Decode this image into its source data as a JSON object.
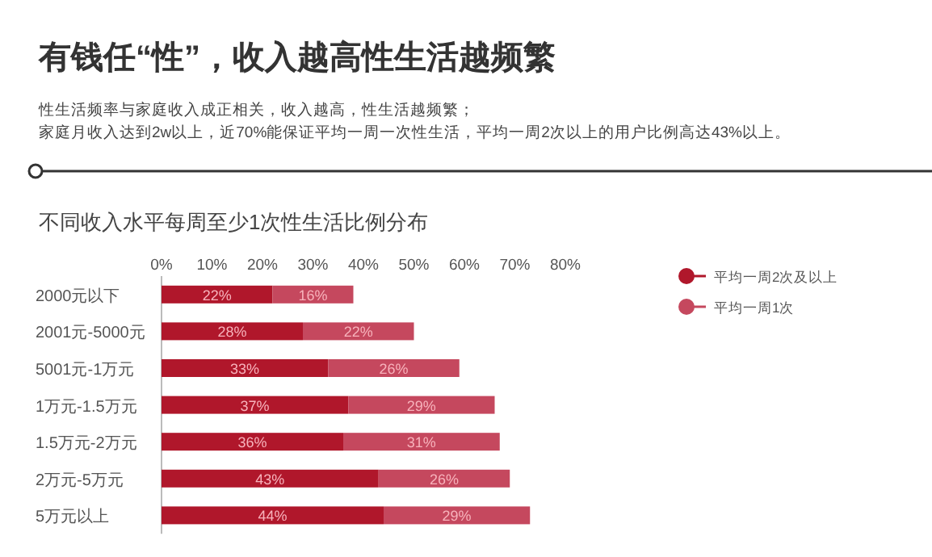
{
  "chart_data": {
    "type": "bar",
    "orientation": "horizontal",
    "stacked": true,
    "title": "有钱任“性”，收入越高性生活越频繁",
    "subtitle": "不同收入水平每周至少1次性生活比例分布",
    "annotations": [
      "性生活频率与家庭收入成正相关，收入越高，性生活越频繁；",
      "家庭月收入达到2w以上，近70%能保证平均一周一次性生活，平均一周2次以上的用户比例高达43%以上。"
    ],
    "categories": [
      "2000元以下",
      "2001元-5000元",
      "5001元-1万元",
      "1万元-1.5万元",
      "1.5万元-2万元",
      "2万元-5万元",
      "5万元以上"
    ],
    "series": [
      {
        "name": "平均一周2次及以上",
        "color": "#b0172b",
        "values": [
          22,
          28,
          33,
          37,
          36,
          43,
          44
        ],
        "value_labels": [
          "22%",
          "28%",
          "33%",
          "37%",
          "36%",
          "43%",
          "44%"
        ]
      },
      {
        "name": "平均一周1次",
        "color": "#c5485e",
        "values": [
          16,
          22,
          26,
          29,
          31,
          26,
          29
        ],
        "value_labels": [
          "16%",
          "22%",
          "26%",
          "29%",
          "31%",
          "26%",
          "29%"
        ]
      }
    ],
    "xlim": [
      0,
      80
    ],
    "xticks": [
      {
        "value": 0,
        "label": "0%"
      },
      {
        "value": 10,
        "label": "10%"
      },
      {
        "value": 20,
        "label": "20%"
      },
      {
        "value": 30,
        "label": "30%"
      },
      {
        "value": 40,
        "label": "40%"
      },
      {
        "value": 50,
        "label": "50%"
      },
      {
        "value": 60,
        "label": "60%"
      },
      {
        "value": 70,
        "label": "70%"
      },
      {
        "value": 80,
        "label": "80%"
      }
    ],
    "grid": false,
    "legend": "right"
  }
}
